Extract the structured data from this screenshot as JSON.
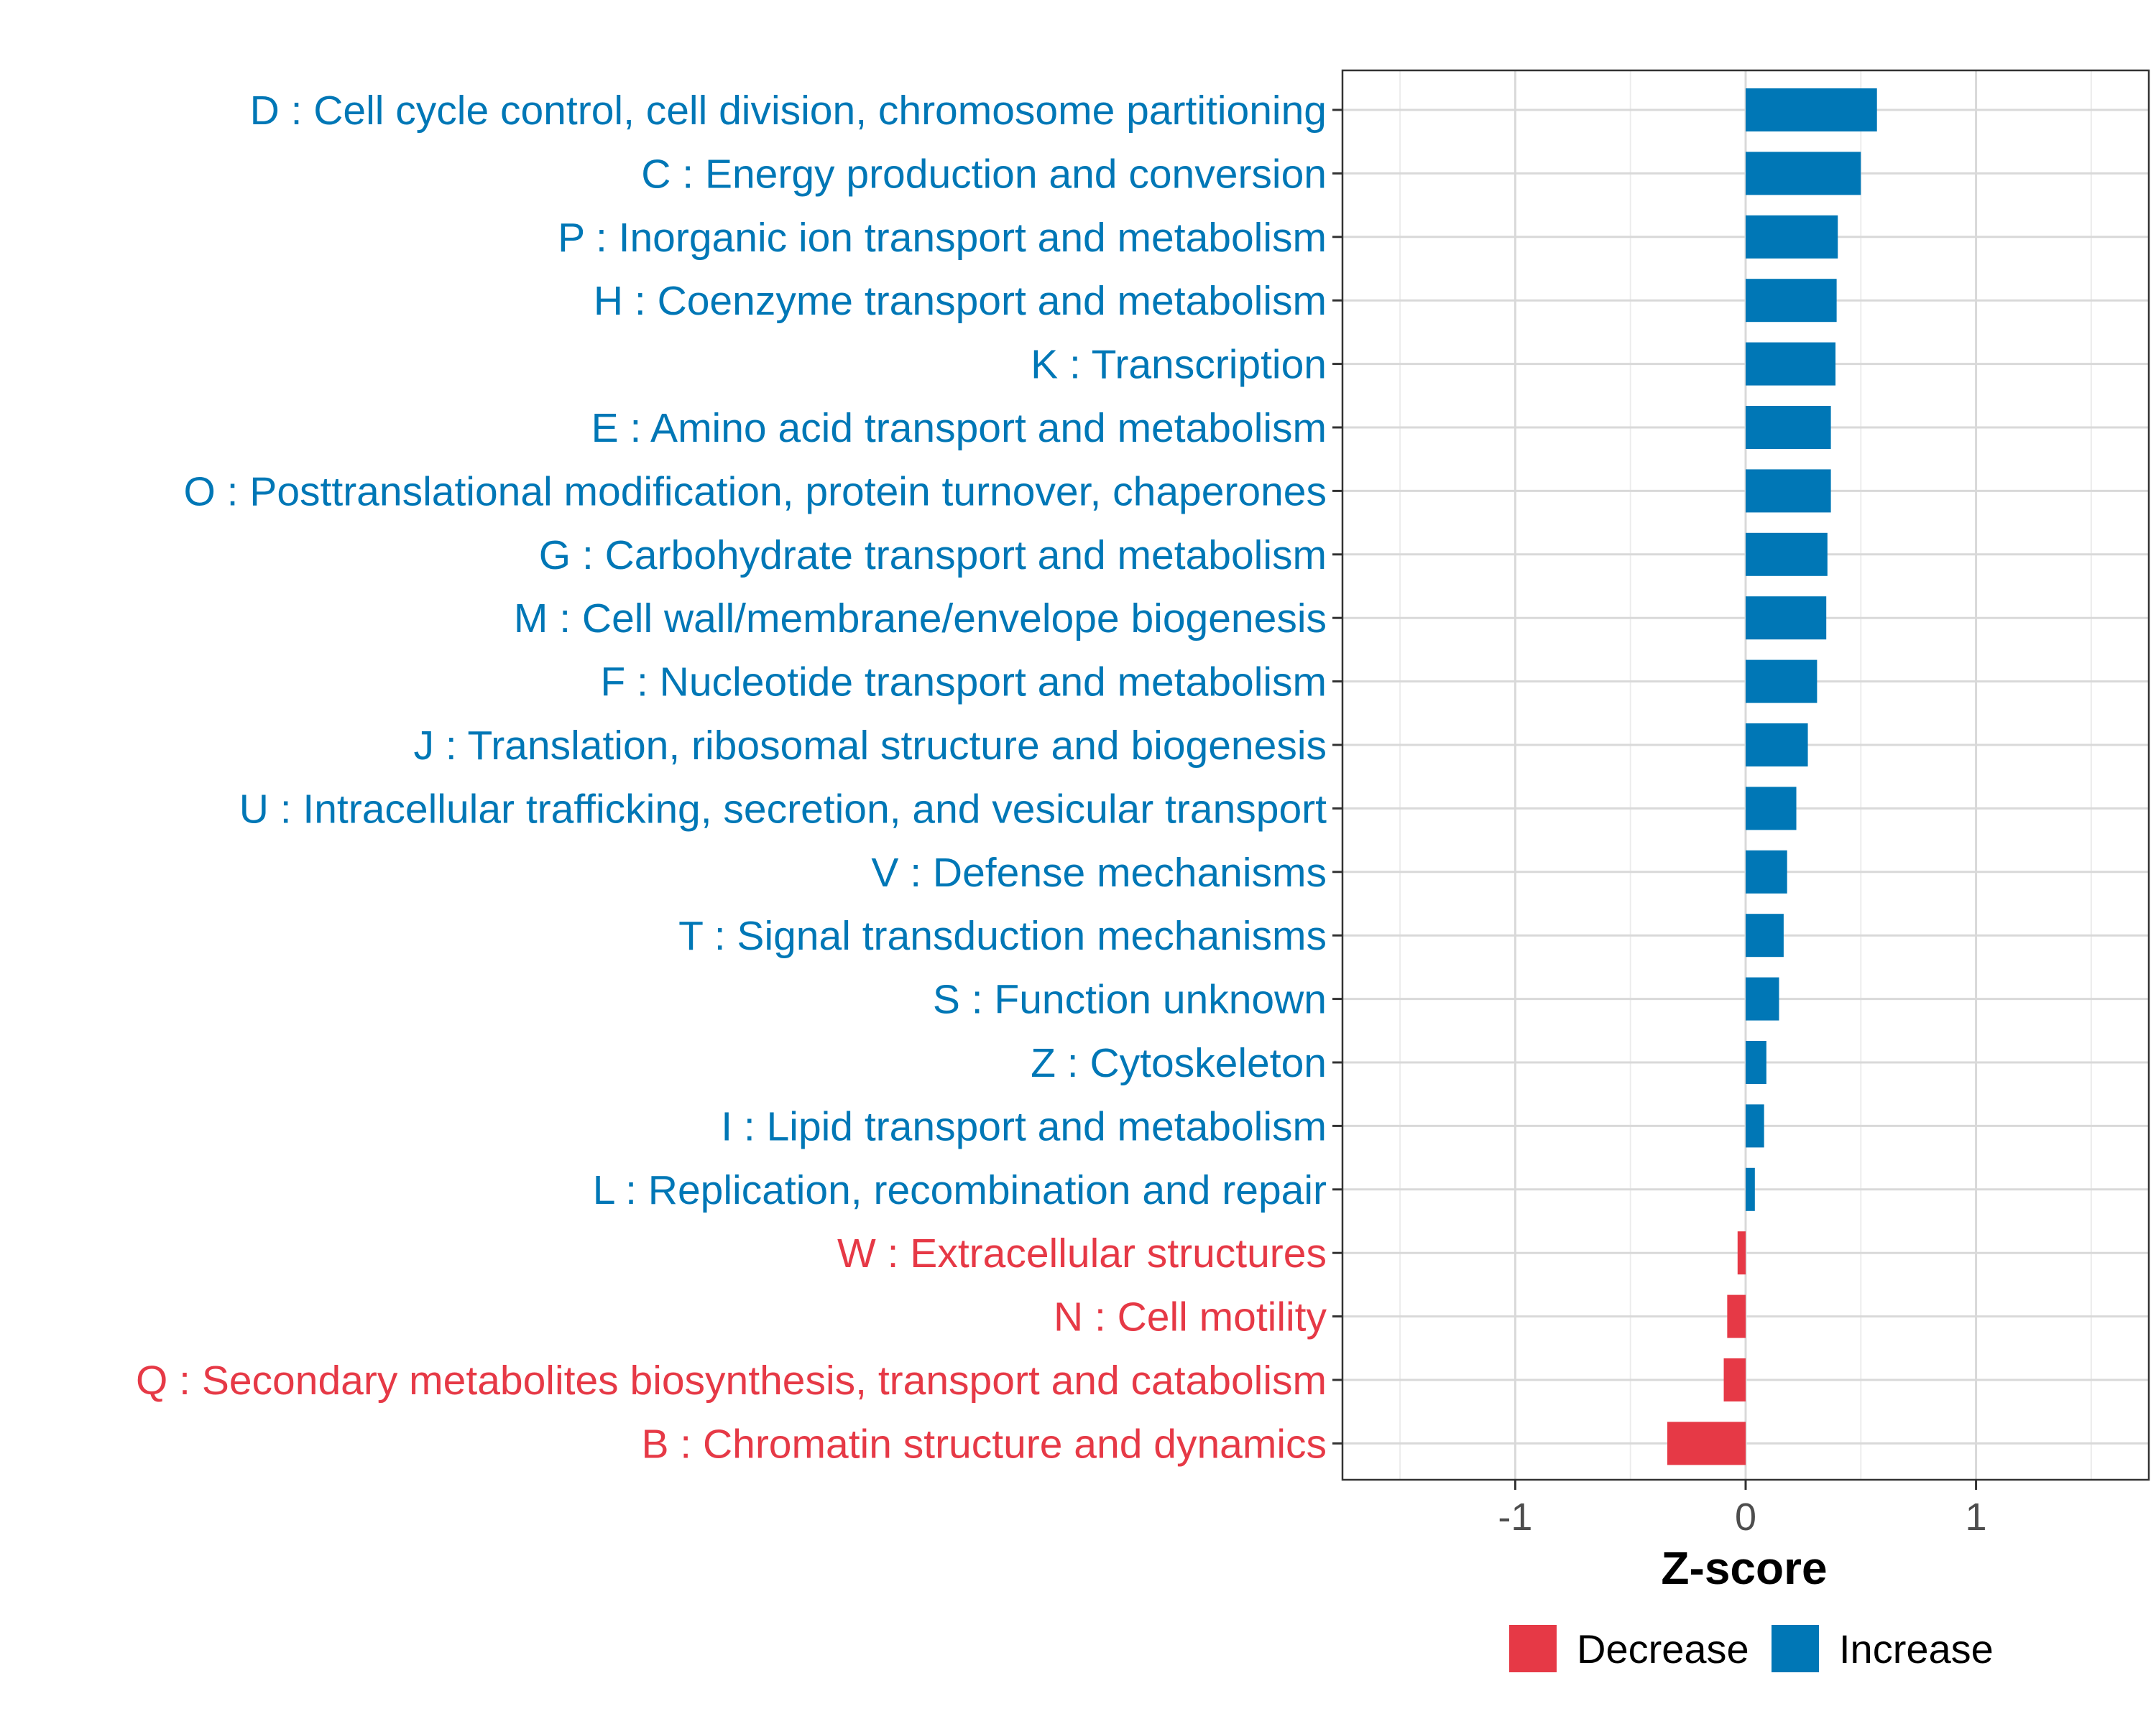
{
  "chart_data": {
    "type": "bar",
    "orientation": "horizontal",
    "title": "",
    "xlabel": "Z-score",
    "ylabel": "",
    "xlim": [
      -1.75,
      1.75
    ],
    "xticks": [
      -1,
      0,
      1
    ],
    "xtick_labels": [
      "-1",
      "0",
      "1"
    ],
    "grid": true,
    "legend_position": "bottom",
    "colors": {
      "Decrease": "#e63946",
      "Increase": "#0077b6"
    },
    "legend": [
      {
        "label": "Decrease",
        "color": "#e63946"
      },
      {
        "label": "Increase",
        "color": "#0077b6"
      }
    ],
    "categories": [
      "D : Cell cycle control, cell division, chromosome partitioning",
      "C : Energy production and conversion",
      "P : Inorganic ion transport and metabolism",
      "H : Coenzyme transport and metabolism",
      "K : Transcription",
      "E : Amino acid transport and metabolism",
      "O : Posttranslational modification, protein turnover, chaperones",
      "G : Carbohydrate transport and metabolism",
      "M : Cell wall/membrane/envelope biogenesis",
      "F : Nucleotide transport and metabolism",
      "J : Translation, ribosomal structure and biogenesis",
      "U : Intracellular trafficking, secretion, and vesicular transport",
      "V : Defense mechanisms",
      "T : Signal transduction mechanisms",
      "S : Function unknown",
      "Z : Cytoskeleton",
      "I : Lipid transport and metabolism",
      "L : Replication, recombination and repair",
      "W : Extracellular structures",
      "N : Cell motility",
      "Q : Secondary metabolites biosynthesis, transport and catabolism",
      "B : Chromatin structure and dynamics"
    ],
    "values": [
      0.57,
      0.5,
      0.4,
      0.395,
      0.39,
      0.37,
      0.37,
      0.355,
      0.35,
      0.31,
      0.27,
      0.22,
      0.18,
      0.165,
      0.145,
      0.09,
      0.08,
      0.04,
      -0.035,
      -0.08,
      -0.095,
      -0.34
    ],
    "direction": [
      "Increase",
      "Increase",
      "Increase",
      "Increase",
      "Increase",
      "Increase",
      "Increase",
      "Increase",
      "Increase",
      "Increase",
      "Increase",
      "Increase",
      "Increase",
      "Increase",
      "Increase",
      "Increase",
      "Increase",
      "Increase",
      "Decrease",
      "Decrease",
      "Decrease",
      "Decrease"
    ]
  }
}
